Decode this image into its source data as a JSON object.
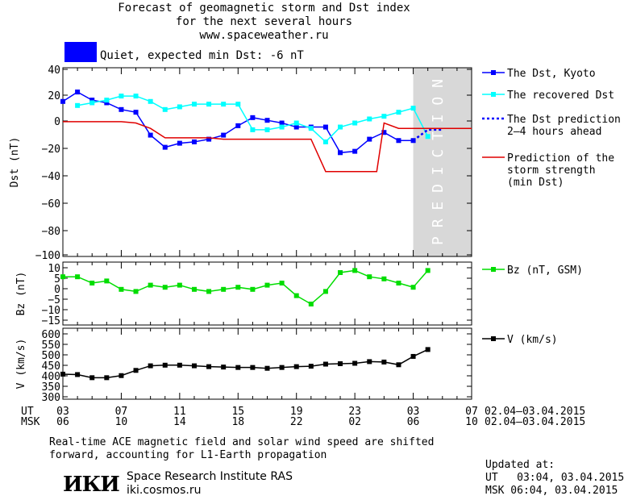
{
  "header": {
    "title_line1": "Forecast of geomagnetic storm and Dst index",
    "title_line2": "for the next several hours",
    "title_line3": "www.spaceweather.ru",
    "status_text": "Quiet, expected min Dst: -6 nT",
    "status_color": "#0000ff"
  },
  "chart_data": [
    {
      "type": "line",
      "ylabel": "Dst (nT)",
      "ylim": [
        -100,
        40
      ],
      "yticks": [
        "40",
        "20",
        "0",
        "−20",
        "−40",
        "−60",
        "−80",
        "−100"
      ],
      "xlim": [
        3,
        31
      ],
      "prediction_band": {
        "start": 27,
        "end": 31,
        "label": "P R E D I C T I O N",
        "color": "#d8d8d8"
      },
      "series": [
        {
          "name": "The Dst, Kyoto",
          "color": "#0000ff",
          "marker": "square",
          "x": [
            3,
            4,
            5,
            6,
            7,
            8,
            9,
            10,
            11,
            12,
            13,
            14,
            15,
            16,
            17,
            18,
            19,
            20,
            21,
            22,
            23,
            24,
            25,
            26,
            27
          ],
          "y": [
            15,
            22,
            16,
            14,
            9,
            7,
            -10,
            -19,
            -16,
            -15,
            -13,
            -10,
            -3,
            3,
            1,
            -1,
            -4,
            -4,
            -4,
            -23,
            -22,
            -13,
            -8,
            -14,
            -14
          ]
        },
        {
          "name": "The recovered Dst",
          "color": "#00ffff",
          "marker": "square",
          "x": [
            4,
            5,
            6,
            7,
            8,
            9,
            10,
            11,
            12,
            13,
            14,
            15,
            16,
            17,
            18,
            19,
            20,
            21,
            22,
            23,
            24,
            25,
            26,
            27,
            28
          ],
          "y": [
            12,
            14,
            16,
            19,
            19,
            15,
            9,
            11,
            13,
            13,
            13,
            13,
            -6,
            -6,
            -4,
            -1,
            -5,
            -15,
            -4,
            -1,
            2,
            4,
            7,
            10,
            -11
          ]
        },
        {
          "name": "The Dst prediction\n2–4 hours ahead",
          "color": "#0000ff",
          "dash": true,
          "x": [
            27,
            28,
            29
          ],
          "y": [
            -14,
            -6,
            -6
          ]
        },
        {
          "name": "Prediction of the\nstorm strength\n(min Dst)",
          "color": "#e00000",
          "step": true,
          "x": [
            3,
            7,
            8,
            9,
            10,
            14,
            18,
            19,
            21,
            22,
            23,
            24,
            24.5,
            25,
            26,
            31
          ],
          "y": [
            0,
            0,
            -1,
            -5,
            -12,
            -13,
            -13,
            -13,
            -37,
            -37,
            -37,
            -37,
            -37,
            -1,
            -5,
            -5
          ]
        }
      ]
    },
    {
      "type": "line",
      "ylabel": "Bz (nT)",
      "ylim": [
        -18,
        12
      ],
      "yticks": [
        "10",
        "5",
        "0",
        "−5",
        "−10",
        "−15"
      ],
      "xlim": [
        3,
        31
      ],
      "series": [
        {
          "name": "Bz (nT, GSM)",
          "color": "#00dd00",
          "marker": "square",
          "x": [
            3,
            4,
            5,
            6,
            7,
            8,
            9,
            10,
            11,
            12,
            13,
            14,
            15,
            16,
            17,
            18,
            19,
            20,
            21,
            22,
            23,
            24,
            25,
            26,
            27,
            28
          ],
          "y": [
            5,
            5,
            2,
            3,
            -1,
            -2,
            1,
            0,
            1,
            -1,
            -2,
            -1,
            0,
            -1,
            1,
            2,
            -4,
            -8,
            -2,
            7,
            8,
            5,
            4,
            2,
            0,
            8
          ]
        }
      ]
    },
    {
      "type": "line",
      "ylabel": "V (km/s)",
      "ylim": [
        280,
        620
      ],
      "yticks": [
        "600",
        "550",
        "500",
        "450",
        "400",
        "350",
        "300"
      ],
      "xlim": [
        3,
        31
      ],
      "series": [
        {
          "name": "V (km/s)",
          "color": "#000000",
          "marker": "square",
          "x": [
            3,
            4,
            5,
            6,
            7,
            8,
            9,
            10,
            11,
            12,
            13,
            14,
            15,
            16,
            17,
            18,
            19,
            20,
            21,
            22,
            23,
            24,
            25,
            26,
            27,
            28
          ],
          "y": [
            400,
            398,
            383,
            383,
            393,
            418,
            440,
            443,
            443,
            440,
            436,
            434,
            432,
            432,
            428,
            432,
            436,
            438,
            448,
            450,
            452,
            460,
            458,
            445,
            485,
            518
          ]
        }
      ]
    }
  ],
  "axis": {
    "ut_label": "UT",
    "msk_label": "MSK",
    "ut_ticks": [
      "03",
      "07",
      "11",
      "15",
      "19",
      "23",
      "03",
      "07"
    ],
    "msk_ticks": [
      "06",
      "10",
      "14",
      "18",
      "22",
      "02",
      "06",
      "10"
    ],
    "ut_range": "02.04–03.04.2015",
    "msk_range": "02.04–03.04.2015"
  },
  "footer": {
    "note_line1": "Real-time ACE magnetic field and solar wind speed are shifted",
    "note_line2": "forward, accounting for L1-Earth propagation",
    "logo_text": "ИКИ",
    "institute": "Space Research Institute RAS",
    "website": "iki.cosmos.ru",
    "updated_label": "Updated at:",
    "updated_ut": "UT   03:04, 03.04.2015",
    "updated_msk": "MSK 06:04, 03.04.2015"
  }
}
